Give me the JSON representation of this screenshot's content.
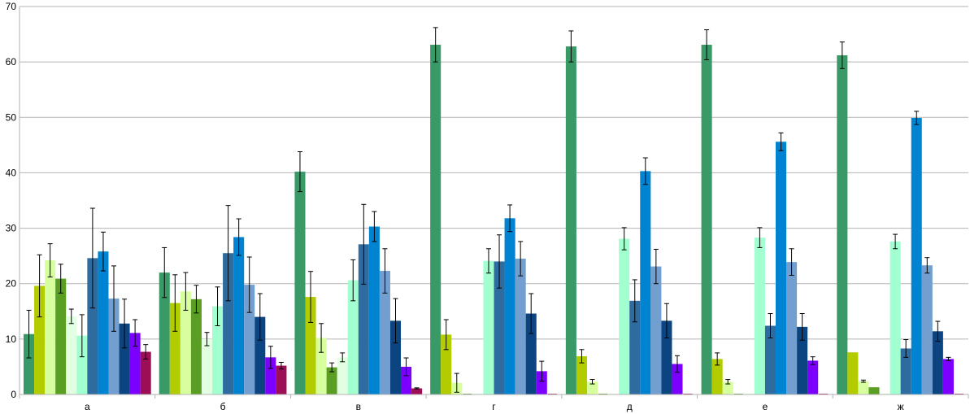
{
  "chart_data": {
    "type": "bar",
    "title": "",
    "xlabel": "",
    "ylabel": "",
    "ylim": [
      0,
      70
    ],
    "yticks": [
      0,
      10,
      20,
      30,
      40,
      50,
      60,
      70
    ],
    "grid": true,
    "legend": "none",
    "categories": [
      "а",
      "б",
      "в",
      "г",
      "д",
      "е",
      "ж"
    ],
    "series": [
      {
        "color": "#3a9a67",
        "values": [
          10.9,
          22.0,
          40.2,
          63.1,
          62.8,
          63.1,
          61.2
        ],
        "errors": [
          4.3,
          4.5,
          3.6,
          3.1,
          2.8,
          2.7,
          2.4
        ]
      },
      {
        "color": "#b3cc00",
        "values": [
          19.6,
          16.5,
          17.6,
          10.8,
          6.9,
          6.4,
          7.6
        ],
        "errors": [
          5.6,
          5.1,
          4.6,
          2.7,
          1.2,
          1.1,
          0
        ]
      },
      {
        "color": "#d7ff9e",
        "values": [
          24.2,
          18.6,
          10.2,
          2.1,
          2.3,
          2.3,
          2.4
        ],
        "errors": [
          3.0,
          3.4,
          2.6,
          1.7,
          0.4,
          0.4,
          0.2
        ]
      },
      {
        "color": "#5a9e23",
        "values": [
          20.9,
          17.2,
          4.9,
          0,
          0,
          0,
          1.3
        ],
        "errors": [
          2.6,
          2.5,
          0.8,
          0,
          0,
          0,
          0
        ]
      },
      {
        "color": "#e3ffe2",
        "values": [
          14.1,
          10.0,
          6.7,
          0,
          0,
          0,
          0
        ],
        "errors": [
          1.3,
          1.2,
          0.8,
          0,
          0,
          0,
          0
        ]
      },
      {
        "color": "#a1ffd0",
        "values": [
          10.6,
          15.9,
          20.6,
          24.1,
          28.1,
          28.3,
          27.6
        ],
        "errors": [
          3.8,
          3.5,
          3.7,
          2.2,
          2.0,
          1.8,
          1.3
        ]
      },
      {
        "color": "#2e6c9f",
        "values": [
          24.6,
          25.5,
          27.1,
          24.0,
          16.9,
          12.4,
          8.3
        ],
        "errors": [
          9.0,
          8.6,
          7.2,
          4.8,
          3.8,
          2.2,
          1.6
        ]
      },
      {
        "color": "#0084d1",
        "values": [
          25.8,
          28.4,
          30.3,
          31.8,
          40.3,
          45.6,
          49.9
        ],
        "errors": [
          3.5,
          3.3,
          2.7,
          2.4,
          2.4,
          1.6,
          1.2
        ]
      },
      {
        "color": "#729fcf",
        "values": [
          17.3,
          19.8,
          22.3,
          24.5,
          23.1,
          23.9,
          23.3
        ],
        "errors": [
          5.9,
          5.0,
          4.0,
          3.1,
          3.1,
          2.4,
          1.4
        ]
      },
      {
        "color": "#0b4480",
        "values": [
          12.8,
          14.0,
          13.3,
          14.6,
          13.3,
          12.2,
          11.4
        ],
        "errors": [
          4.4,
          4.2,
          4.0,
          3.6,
          3.1,
          2.4,
          1.8
        ]
      },
      {
        "color": "#7b00ff",
        "values": [
          11.1,
          6.7,
          5.0,
          4.2,
          5.5,
          6.1,
          6.4
        ],
        "errors": [
          2.4,
          2.0,
          1.6,
          1.8,
          1.5,
          0.7,
          0.3
        ]
      },
      {
        "color": "#9c0f56",
        "values": [
          7.7,
          5.2,
          1.1,
          0,
          0,
          0,
          0
        ],
        "errors": [
          1.3,
          0.6,
          0.1,
          0,
          0,
          0,
          0
        ]
      }
    ]
  }
}
